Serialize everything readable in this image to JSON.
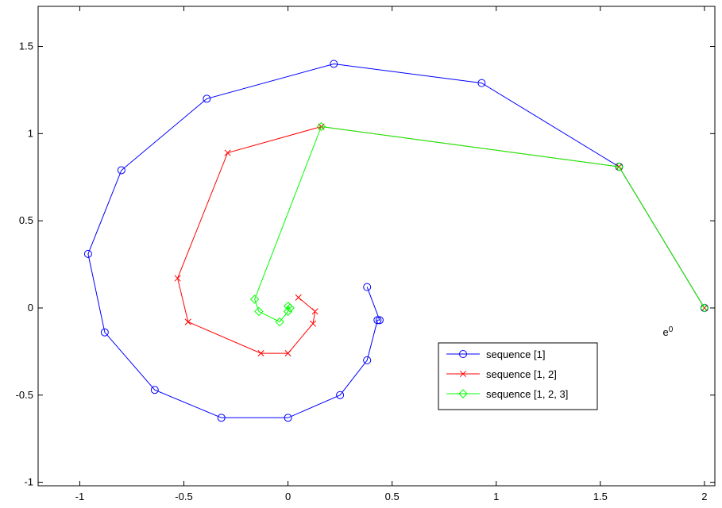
{
  "chart_data": {
    "type": "line",
    "title": "",
    "xlabel": "",
    "ylabel": "",
    "xlim": [
      -1.2,
      2.05
    ],
    "ylim": [
      -1.02,
      1.73
    ],
    "xticks": [
      -1,
      -0.5,
      0,
      0.5,
      1,
      1.5,
      2
    ],
    "xtick_labels": [
      "-1",
      "-0.5",
      "0",
      "0.5",
      "1",
      "1.5",
      "2"
    ],
    "yticks": [
      -1,
      -0.5,
      0,
      0.5,
      1,
      1.5
    ],
    "ytick_labels": [
      "-1",
      "-0.5",
      "0",
      "0.5",
      "1",
      "1.5"
    ],
    "grid": false,
    "legend_position": "lower-right",
    "annotation": {
      "text": "e",
      "superscript": "0",
      "x": 1.8,
      "y": -0.16
    },
    "series": [
      {
        "name": "sequence [1]",
        "color": "#0000ff",
        "marker": "circle",
        "x": [
          2.0,
          1.59,
          0.93,
          0.22,
          -0.39,
          -0.8,
          -0.96,
          -0.88,
          -0.64,
          -0.32,
          0.0,
          0.25,
          0.38,
          0.43,
          0.44,
          0.38
        ],
        "y": [
          0.0,
          0.81,
          1.29,
          1.4,
          1.2,
          0.79,
          0.31,
          -0.14,
          -0.47,
          -0.63,
          -0.63,
          -0.5,
          -0.3,
          -0.07,
          -0.07,
          0.12
        ]
      },
      {
        "name": "sequence [1, 2]",
        "color": "#ff0000",
        "marker": "x",
        "x": [
          2.0,
          1.59,
          0.16,
          -0.29,
          -0.53,
          -0.48,
          -0.13,
          0.0,
          0.12,
          0.13,
          0.05
        ],
        "y": [
          0.0,
          0.81,
          1.04,
          0.89,
          0.17,
          -0.08,
          -0.26,
          -0.26,
          -0.09,
          -0.02,
          0.06
        ]
      },
      {
        "name": "sequence [1, 2, 3]",
        "color": "#00ff00",
        "marker": "diamond",
        "x": [
          2.0,
          1.59,
          0.16,
          -0.16,
          -0.14,
          -0.04,
          0.0,
          0.0,
          0.01
        ],
        "y": [
          0.0,
          0.81,
          1.04,
          0.05,
          -0.02,
          -0.08,
          -0.02,
          0.01,
          0.0
        ]
      }
    ]
  }
}
